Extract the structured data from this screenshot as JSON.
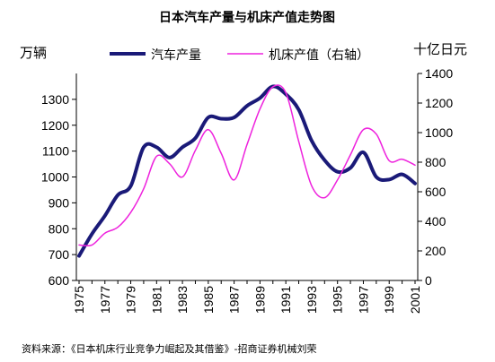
{
  "chart_data": {
    "type": "line",
    "title": "日本汽车产量与机床产值走势图",
    "left_unit": "万辆",
    "right_unit": "十亿日元",
    "source": "资料来源：《日本机床行业竞争力崛起及其借鉴》-招商证券机械刘荣",
    "x_ticks": [
      "1975",
      "1977",
      "1979",
      "1981",
      "1983",
      "1985",
      "1987",
      "1989",
      "1991",
      "1993",
      "1995",
      "1997",
      "1999",
      "2001"
    ],
    "y_left": {
      "min": 600,
      "max": 1400,
      "ticks": [
        "600",
        "700",
        "800",
        "900",
        "1000",
        "1100",
        "1200",
        "1300"
      ]
    },
    "y_right": {
      "min": 0,
      "max": 1400,
      "ticks": [
        "0",
        "200",
        "400",
        "600",
        "800",
        "1000",
        "1200",
        "1400"
      ]
    },
    "grid": false,
    "legend_position": "top",
    "series": [
      {
        "name": "汽车产量",
        "axis": "left",
        "color": "#1a1a78",
        "x": [
          1975,
          1976,
          1977,
          1978,
          1979,
          1980,
          1981,
          1982,
          1983,
          1984,
          1985,
          1986,
          1987,
          1988,
          1989,
          1990,
          1991,
          1992,
          1993,
          1994,
          1995,
          1996,
          1997,
          1998,
          1999,
          2000,
          2001
        ],
        "values": [
          695,
          780,
          850,
          930,
          965,
          1115,
          1115,
          1075,
          1115,
          1150,
          1230,
          1225,
          1230,
          1275,
          1305,
          1350,
          1320,
          1260,
          1140,
          1065,
          1020,
          1035,
          1095,
          1000,
          990,
          1010,
          975
        ]
      },
      {
        "name": "机床产值（右轴）",
        "axis": "right",
        "color": "#ee22dd",
        "x": [
          1975,
          1976,
          1977,
          1978,
          1979,
          1980,
          1981,
          1982,
          1983,
          1984,
          1985,
          1986,
          1987,
          1988,
          1989,
          1990,
          1991,
          1992,
          1993,
          1994,
          1995,
          1996,
          1997,
          1998,
          1999,
          2000,
          2001
        ],
        "values": [
          240,
          240,
          320,
          360,
          460,
          620,
          840,
          790,
          700,
          880,
          1020,
          860,
          680,
          920,
          1160,
          1310,
          1270,
          940,
          640,
          560,
          680,
          850,
          1020,
          990,
          810,
          820,
          780
        ]
      }
    ]
  }
}
